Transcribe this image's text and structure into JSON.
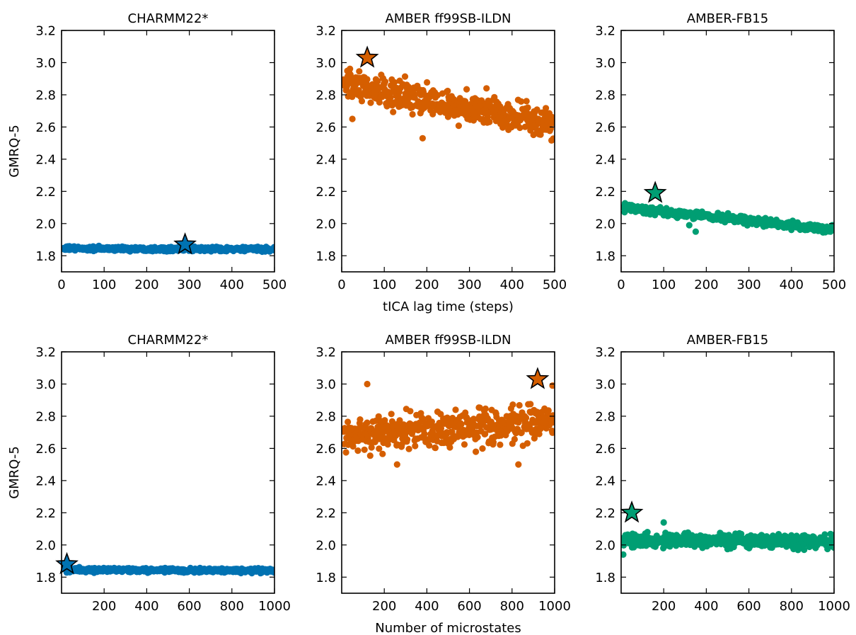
{
  "chart_data": [
    {
      "type": "scatter",
      "title": "CHARMM22*",
      "ylabel": "GMRQ-5",
      "xlim": [
        0,
        500
      ],
      "ylim": [
        1.7,
        3.2
      ],
      "xticks": [
        0,
        100,
        200,
        300,
        400,
        500
      ],
      "yticks": [
        1.8,
        2.0,
        2.2,
        2.4,
        2.6,
        2.8,
        3.0,
        3.2
      ],
      "color": "#0072b2",
      "trend": {
        "x": [
          5,
          500
        ],
        "y": [
          1.845,
          1.84
        ],
        "spread": 0.02
      },
      "outliers": [],
      "best": {
        "x": 290,
        "y": 1.87
      }
    },
    {
      "type": "scatter",
      "title": "AMBER ff99SB-ILDN",
      "xlabel": "tICA lag time (steps)",
      "xlim": [
        0,
        500
      ],
      "ylim": [
        1.7,
        3.2
      ],
      "xticks": [
        0,
        100,
        200,
        300,
        400,
        500
      ],
      "yticks": [
        1.8,
        2.0,
        2.2,
        2.4,
        2.6,
        2.8,
        3.0,
        3.2
      ],
      "color": "#d55e00",
      "trend": {
        "x": [
          5,
          500
        ],
        "y": [
          2.86,
          2.62
        ],
        "spread": 0.14
      },
      "outliers": [
        [
          190,
          2.53
        ],
        [
          25,
          2.65
        ],
        [
          340,
          2.84
        ]
      ],
      "best": {
        "x": 60,
        "y": 3.03
      }
    },
    {
      "type": "scatter",
      "title": "AMBER-FB15",
      "xlim": [
        0,
        500
      ],
      "ylim": [
        1.7,
        3.2
      ],
      "xticks": [
        0,
        100,
        200,
        300,
        400,
        500
      ],
      "yticks": [
        1.8,
        2.0,
        2.2,
        2.4,
        2.6,
        2.8,
        3.0,
        3.2
      ],
      "color": "#009e73",
      "trend": {
        "x": [
          5,
          500
        ],
        "y": [
          2.1,
          1.96
        ],
        "spread": 0.035
      },
      "outliers": [
        [
          175,
          1.95
        ],
        [
          160,
          1.99
        ]
      ],
      "best": {
        "x": 80,
        "y": 2.19
      }
    },
    {
      "type": "scatter",
      "title": "CHARMM22*",
      "ylabel": "GMRQ-5",
      "xlim": [
        0,
        1000
      ],
      "ylim": [
        1.7,
        3.2
      ],
      "xticks": [
        200,
        400,
        600,
        800,
        1000
      ],
      "yticks": [
        1.8,
        2.0,
        2.2,
        2.4,
        2.6,
        2.8,
        3.0,
        3.2
      ],
      "color": "#0072b2",
      "trend": {
        "x": [
          20,
          1000
        ],
        "y": [
          1.845,
          1.84
        ],
        "spread": 0.02
      },
      "outliers": [],
      "best": {
        "x": 25,
        "y": 1.88
      }
    },
    {
      "type": "scatter",
      "title": "AMBER ff99SB-ILDN",
      "xlabel": "Number of microstates",
      "xlim": [
        0,
        1000
      ],
      "ylim": [
        1.7,
        3.2
      ],
      "xticks": [
        200,
        400,
        600,
        800,
        1000
      ],
      "yticks": [
        1.8,
        2.0,
        2.2,
        2.4,
        2.6,
        2.8,
        3.0,
        3.2
      ],
      "color": "#d55e00",
      "trend": {
        "x": [
          10,
          1000
        ],
        "y": [
          2.68,
          2.76
        ],
        "spread": 0.17
      },
      "outliers": [
        [
          830,
          2.5
        ],
        [
          120,
          3.0
        ],
        [
          260,
          2.5
        ],
        [
          990,
          2.99
        ]
      ],
      "best": {
        "x": 920,
        "y": 3.03
      }
    },
    {
      "type": "scatter",
      "title": "AMBER-FB15",
      "xlim": [
        0,
        1000
      ],
      "ylim": [
        1.7,
        3.2
      ],
      "xticks": [
        200,
        400,
        600,
        800,
        1000
      ],
      "yticks": [
        1.8,
        2.0,
        2.2,
        2.4,
        2.6,
        2.8,
        3.0,
        3.2
      ],
      "color": "#009e73",
      "trend": {
        "x": [
          10,
          1000
        ],
        "y": [
          2.03,
          2.02
        ],
        "spread": 0.06
      },
      "outliers": [
        [
          200,
          2.14
        ],
        [
          10,
          1.94
        ]
      ],
      "best": {
        "x": 50,
        "y": 2.2
      }
    }
  ]
}
